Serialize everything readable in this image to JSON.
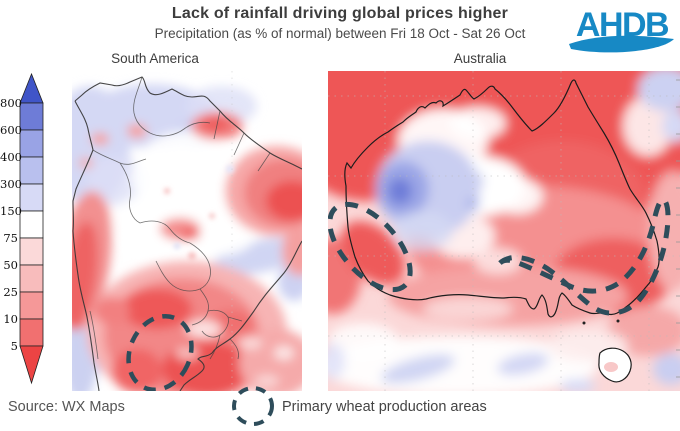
{
  "header": {
    "title": "Lack of rainfall driving global prices higher",
    "subtitle": "Precipitation (as % of normal) between Fri 18 Oct - Sat 26 Oct"
  },
  "logo": {
    "text": "AHDB",
    "color": "#1789c5"
  },
  "maps": {
    "left": {
      "label": "South America"
    },
    "right": {
      "label": "Australia"
    }
  },
  "color_scale": {
    "values": [
      "800",
      "600",
      "400",
      "300",
      "150",
      "75",
      "50",
      "25",
      "10",
      "5"
    ],
    "top_arrow_color": "#4055c8",
    "bottom_arrow_color": "#ec4444",
    "segment_colors": [
      "#6e7cd7",
      "#99a3e5",
      "#b9c0ee",
      "#d7daf6",
      "#ffffff",
      "#fbd9d9",
      "#f8bcbc",
      "#f59898",
      "#f17070"
    ]
  },
  "annotation": {
    "label": "Primary wheat production areas",
    "color": "#2e4d5b"
  },
  "footer": {
    "source": "Source: WX Maps"
  },
  "palette": {
    "strong_red": "#ee5656",
    "medium_pink": "#f59c9c",
    "light_pink": "#fbd8d8",
    "lavender": "#c9cef1",
    "blue_purple": "#9ba6e6",
    "deep_blue": "#6e7dd8",
    "coastline": "#1c1c1c",
    "title_text": "#3d3d3d"
  }
}
